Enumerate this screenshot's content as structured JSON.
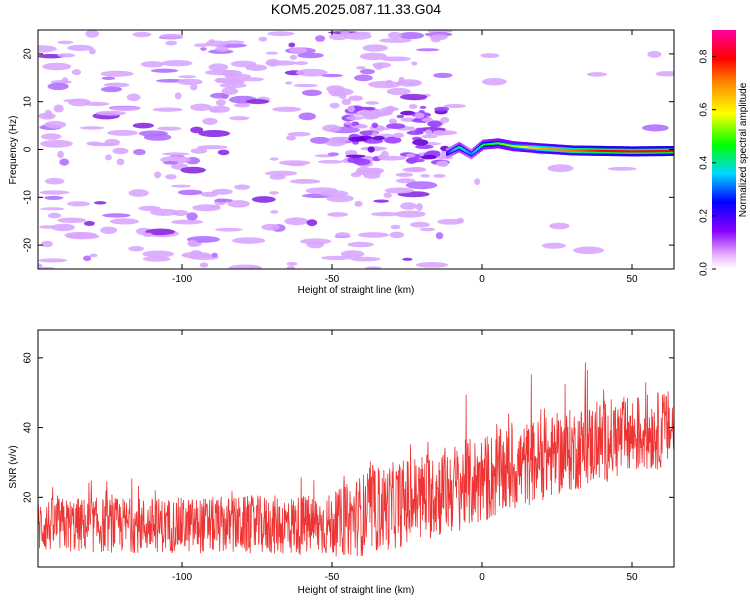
{
  "title": "KOM5.2025.087.11.33.G04",
  "chart_data": [
    {
      "type": "heatmap",
      "xlabel": "Height of straight line (km)",
      "ylabel": "Frequency (Hz)",
      "xlim": [
        -148,
        64
      ],
      "ylim": [
        -25,
        25
      ],
      "xticks": [
        -100,
        -50,
        0,
        50
      ],
      "xtick_labels": [
        "-100",
        "-50",
        "0",
        "50"
      ],
      "yticks": [
        -20,
        -10,
        0,
        10,
        20
      ],
      "ytick_labels": [
        "-20",
        "-10",
        "0",
        "10",
        "20"
      ],
      "colorbar": {
        "label": "Normalized spectral amplitude",
        "range": [
          0,
          0.9
        ],
        "ticks": [
          0.0,
          0.2,
          0.4,
          0.6,
          0.8
        ],
        "tick_labels": [
          "0.0",
          "0.2",
          "0.4",
          "0.6",
          "0.8"
        ],
        "colormap": [
          "#ffffff",
          "#e8b0ff",
          "#8800ff",
          "#0000ff",
          "#00d8ff",
          "#00ff00",
          "#ffff00",
          "#ff8800",
          "#ff0000",
          "#ff00a0"
        ]
      },
      "ridge": {
        "x": [
          -12,
          -8,
          -4,
          0,
          5,
          10,
          20,
          30,
          40,
          50,
          64
        ],
        "y": [
          -0.8,
          0.5,
          -1.0,
          1.0,
          1.3,
          0.7,
          0.2,
          -0.2,
          -0.3,
          -0.4,
          -0.3
        ],
        "amplitude": [
          0.3,
          0.45,
          0.35,
          0.5,
          0.55,
          0.6,
          0.75,
          0.8,
          0.88,
          0.9,
          0.9
        ]
      },
      "grid": false
    },
    {
      "type": "line",
      "xlabel": "Height of straight line (km)",
      "ylabel": "SNR (v/v)",
      "xlim": [
        -148,
        64
      ],
      "ylim": [
        0,
        68
      ],
      "xticks": [
        -100,
        -50,
        0,
        50
      ],
      "xtick_labels": [
        "-100",
        "-50",
        "0",
        "50"
      ],
      "yticks": [
        20,
        40,
        60
      ],
      "ytick_labels": [
        "20",
        "40",
        "60"
      ],
      "series": [
        {
          "color": "#ee3333",
          "trend_x": [
            -148,
            -100,
            -50,
            -40,
            -20,
            0,
            20,
            40,
            64
          ],
          "trend_y": [
            12,
            12,
            12,
            15,
            20,
            25,
            31,
            36,
            40
          ],
          "noise_amplitude": [
            8,
            8,
            9,
            12,
            13,
            13,
            12,
            12,
            11
          ]
        }
      ],
      "grid": false
    }
  ]
}
